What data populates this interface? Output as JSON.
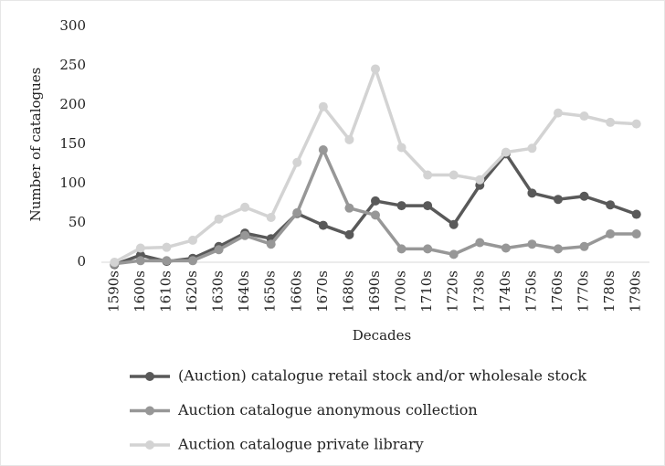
{
  "chart_data": {
    "type": "line",
    "y_axis_label": "Number of catalogues",
    "x_axis_label": "Decades",
    "categories": [
      "1590s",
      "1600s",
      "1610s",
      "1620s",
      "1630s",
      "1640s",
      "1650s",
      "1660s",
      "1670s",
      "1680s",
      "1690s",
      "1700s",
      "1710s",
      "1720s",
      "1730s",
      "1740s",
      "1750s",
      "1760s",
      "1770s",
      "1780s",
      "1790s"
    ],
    "series": [
      {
        "name": "(Auction) catalogue retail stock and/or wholesale stock",
        "color": "#595959",
        "values": [
          -3,
          9,
          1,
          5,
          20,
          37,
          30,
          62,
          47,
          35,
          78,
          72,
          72,
          48,
          98,
          138,
          88,
          80,
          84,
          73,
          61
        ]
      },
      {
        "name": "Auction catalogue anonymous collection",
        "color": "#979797",
        "values": [
          -2,
          2,
          2,
          2,
          16,
          34,
          23,
          63,
          143,
          69,
          60,
          17,
          17,
          10,
          25,
          18,
          23,
          17,
          20,
          36,
          36
        ]
      },
      {
        "name": "Auction catalogue private library",
        "color": "#d3d3d3",
        "values": [
          0,
          18,
          19,
          28,
          55,
          70,
          57,
          127,
          198,
          156,
          246,
          146,
          111,
          111,
          105,
          140,
          145,
          190,
          186,
          178,
          176
        ]
      }
    ],
    "ylim": [
      0,
      300
    ],
    "yticks": [
      0,
      50,
      100,
      150,
      200,
      250,
      300
    ],
    "grid": false,
    "legend": "bottom"
  }
}
